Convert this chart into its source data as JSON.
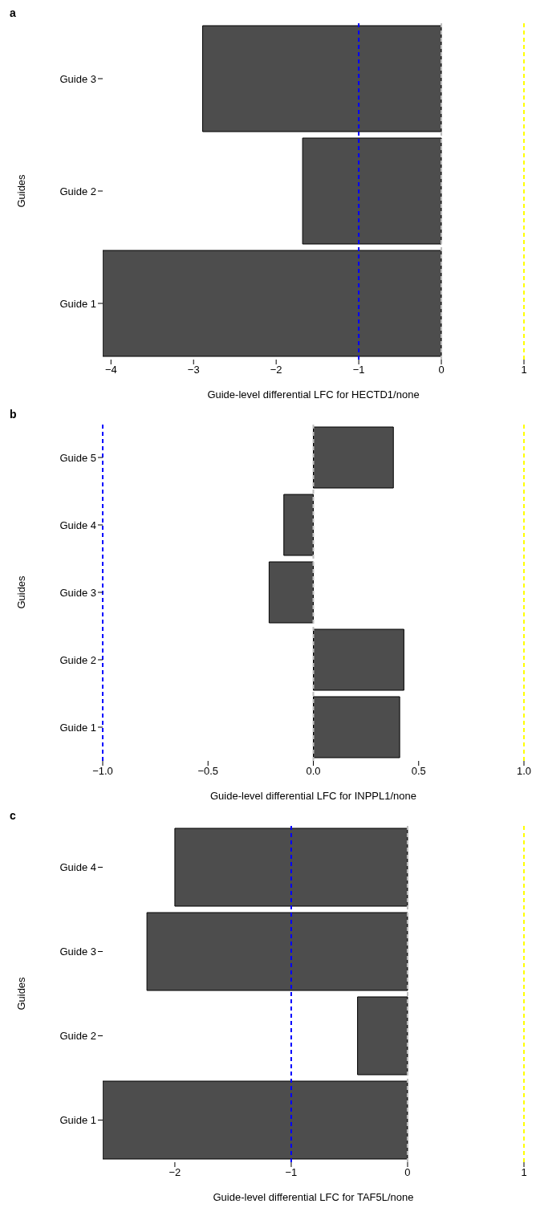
{
  "chart_data": [
    {
      "type": "bar",
      "title": "a",
      "orientation": "horizontal",
      "categories": [
        "Guide 3",
        "Guide 2",
        "Guide 1"
      ],
      "ylabel": "Guides",
      "xlabel": "Guide-level differential LFC for HECTD1/none",
      "series": [
        {
          "color": "#4d4d4d",
          "values": [
            -2.89,
            -1.68,
            -4.1
          ]
        }
      ],
      "xlim": [
        -4.1,
        1
      ],
      "xticks": [
        {
          "value": -4,
          "label": "−4"
        },
        {
          "value": -3,
          "label": "−3"
        },
        {
          "value": -2,
          "label": "−2"
        },
        {
          "value": -1,
          "label": "−1"
        },
        {
          "value": 0,
          "label": "0"
        },
        {
          "value": 1,
          "label": "1"
        }
      ],
      "ref_lines": [
        {
          "axis": "x",
          "value": -1,
          "color": "#0000ff",
          "line_style": "dashed"
        },
        {
          "axis": "x",
          "value": 0,
          "color": "#bebebe",
          "line_style": "dashed"
        },
        {
          "axis": "x",
          "value": 1,
          "color": "#ffff00",
          "line_style": "dashed"
        }
      ],
      "grid": false,
      "legend": false
    },
    {
      "type": "bar",
      "title": "b",
      "orientation": "horizontal",
      "categories": [
        "Guide 5",
        "Guide 4",
        "Guide 3",
        "Guide 2",
        "Guide 1"
      ],
      "ylabel": "Guides",
      "xlabel": "Guide-level differential LFC for INPPL1/none",
      "series": [
        {
          "color": "#4d4d4d",
          "values": [
            0.38,
            -0.14,
            -0.21,
            0.43,
            0.41
          ]
        }
      ],
      "xlim": [
        -1,
        1
      ],
      "xticks": [
        {
          "value": -1,
          "label": "−1.0"
        },
        {
          "value": -0.5,
          "label": "−0.5"
        },
        {
          "value": 0,
          "label": "0.0"
        },
        {
          "value": 0.5,
          "label": "0.5"
        },
        {
          "value": 1,
          "label": "1.0"
        }
      ],
      "ref_lines": [
        {
          "axis": "x",
          "value": -1,
          "color": "#0000ff",
          "line_style": "dashed"
        },
        {
          "axis": "x",
          "value": 0,
          "color": "#bebebe",
          "line_style": "dashed"
        },
        {
          "axis": "x",
          "value": 1,
          "color": "#ffff00",
          "line_style": "dashed"
        }
      ],
      "grid": false,
      "legend": false
    },
    {
      "type": "bar",
      "title": "c",
      "orientation": "horizontal",
      "categories": [
        "Guide 4",
        "Guide 3",
        "Guide 2",
        "Guide 1"
      ],
      "ylabel": "Guides",
      "xlabel": "Guide-level differential LFC for TAF5L/none",
      "series": [
        {
          "color": "#4d4d4d",
          "values": [
            -2.0,
            -2.24,
            -0.43,
            -2.62
          ]
        }
      ],
      "xlim": [
        -2.62,
        1
      ],
      "xticks": [
        {
          "value": -2,
          "label": "−2"
        },
        {
          "value": -1,
          "label": "−1"
        },
        {
          "value": 0,
          "label": "0"
        },
        {
          "value": 1,
          "label": "1"
        }
      ],
      "ref_lines": [
        {
          "axis": "x",
          "value": -1,
          "color": "#0000ff",
          "line_style": "dashed"
        },
        {
          "axis": "x",
          "value": 0,
          "color": "#bebebe",
          "line_style": "dashed"
        },
        {
          "axis": "x",
          "value": 1,
          "color": "#ffff00",
          "line_style": "dashed"
        }
      ],
      "grid": false,
      "legend": false
    }
  ]
}
